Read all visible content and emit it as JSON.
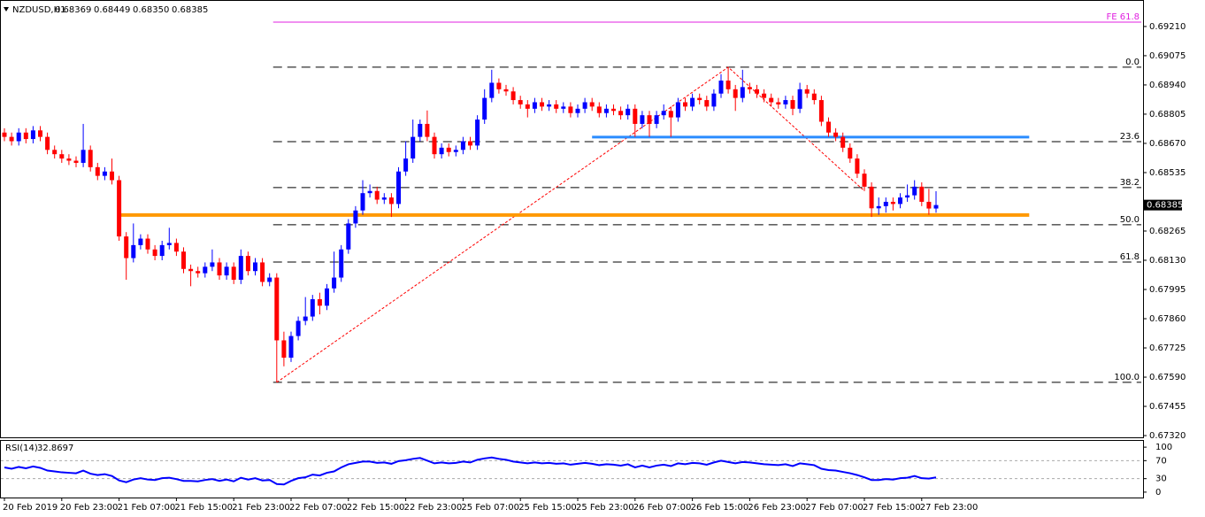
{
  "chart_data": {
    "type": "candlestick",
    "title": "NZDUSD,H1",
    "quote": {
      "open": "0.68369",
      "high": "0.68449",
      "low": "0.68350",
      "close": "0.68385"
    },
    "up_color": "#0000ff",
    "down_color": "#ff0000",
    "categories": [
      "20 Feb 2019",
      null,
      null,
      null,
      null,
      null,
      null,
      null,
      "20 Feb 23:00",
      null,
      null,
      null,
      null,
      null,
      null,
      null,
      "21 Feb 07:00",
      null,
      null,
      null,
      null,
      null,
      null,
      null,
      "21 Feb 15:00",
      null,
      null,
      null,
      null,
      null,
      null,
      null,
      "21 Feb 23:00",
      null,
      null,
      null,
      null,
      null,
      null,
      null,
      "22 Feb 07:00",
      null,
      null,
      null,
      null,
      null,
      null,
      null,
      "22 Feb 15:00",
      null,
      null,
      null,
      null,
      null,
      null,
      null,
      "22 Feb 23:00",
      null,
      null,
      null,
      null,
      null,
      null,
      null,
      "25 Feb 07:00",
      null,
      null,
      null,
      null,
      null,
      null,
      null,
      "25 Feb 15:00",
      null,
      null,
      null,
      null,
      null,
      null,
      null,
      "25 Feb 23:00",
      null,
      null,
      null,
      null,
      null,
      null,
      null,
      "26 Feb 07:00",
      null,
      null,
      null,
      null,
      null,
      null,
      null,
      "26 Feb 15:00",
      null,
      null,
      null,
      null,
      null,
      null,
      null,
      "26 Feb 23:00",
      null,
      null,
      null,
      null,
      null,
      null,
      null,
      "27 Feb 07:00",
      null,
      null,
      null,
      null,
      null,
      null,
      null,
      "27 Feb 15:00",
      null,
      null,
      null,
      null,
      null,
      null,
      null,
      "27 Feb 23:00",
      null,
      null
    ],
    "open": [
      0.6872,
      0.687,
      0.6868,
      0.6872,
      0.6869,
      0.6873,
      0.687,
      0.6864,
      0.6862,
      0.686,
      0.6859,
      0.6858,
      0.6864,
      0.6856,
      0.6852,
      0.6854,
      0.685,
      0.6824,
      0.6814,
      0.682,
      0.6823,
      0.6818,
      0.6815,
      0.682,
      0.6821,
      0.6817,
      0.6809,
      0.6808,
      0.6807,
      0.681,
      0.6812,
      0.6806,
      0.681,
      0.6804,
      0.6815,
      0.6808,
      0.6812,
      0.6803,
      0.6805,
      0.6776,
      0.6768,
      0.6778,
      0.6785,
      0.6787,
      0.6795,
      0.6792,
      0.68,
      0.6805,
      0.6818,
      0.683,
      0.6836,
      0.6844,
      0.6845,
      0.6841,
      0.6842,
      0.6839,
      0.6854,
      0.686,
      0.687,
      0.6876,
      0.687,
      0.6862,
      0.6865,
      0.6863,
      0.6864,
      0.6868,
      0.6866,
      0.6878,
      0.6888,
      0.6895,
      0.6892,
      0.6891,
      0.6887,
      0.6885,
      0.6883,
      0.6886,
      0.6884,
      0.6885,
      0.6883,
      0.6884,
      0.6881,
      0.6883,
      0.6886,
      0.6884,
      0.6881,
      0.6883,
      0.6882,
      0.688,
      0.6883,
      0.6876,
      0.688,
      0.6876,
      0.688,
      0.6882,
      0.6879,
      0.6886,
      0.6884,
      0.6888,
      0.6887,
      0.6884,
      0.689,
      0.6896,
      0.6892,
      0.6888,
      0.6893,
      0.6892,
      0.689,
      0.6888,
      0.6886,
      0.6885,
      0.6887,
      0.6883,
      0.6892,
      0.689,
      0.6887,
      0.6877,
      0.6872,
      0.687,
      0.6865,
      0.686,
      0.6853,
      0.6847,
      0.6837,
      0.6838,
      0.684,
      0.6839,
      0.6842,
      0.6843,
      0.6847,
      0.684,
      0.68369
    ],
    "high": [
      0.6874,
      0.6872,
      0.6874,
      0.6874,
      0.6875,
      0.6875,
      0.6872,
      0.6866,
      0.6864,
      0.6862,
      0.6861,
      0.6876,
      0.6866,
      0.6858,
      0.6856,
      0.686,
      0.6852,
      0.6826,
      0.683,
      0.6825,
      0.6825,
      0.682,
      0.6822,
      0.6828,
      0.6823,
      0.6819,
      0.6811,
      0.681,
      0.6812,
      0.6818,
      0.6814,
      0.6812,
      0.6812,
      0.6818,
      0.6817,
      0.6814,
      0.6814,
      0.6807,
      0.6807,
      0.678,
      0.678,
      0.6787,
      0.6796,
      0.6797,
      0.6798,
      0.6802,
      0.6817,
      0.682,
      0.6832,
      0.6838,
      0.685,
      0.6848,
      0.6847,
      0.6844,
      0.6844,
      0.6856,
      0.6868,
      0.6878,
      0.6878,
      0.68822,
      0.6872,
      0.6867,
      0.6867,
      0.6866,
      0.687,
      0.687,
      0.688,
      0.6892,
      0.6901,
      0.6897,
      0.6894,
      0.6893,
      0.6889,
      0.6887,
      0.6888,
      0.6888,
      0.6887,
      0.6887,
      0.6886,
      0.6886,
      0.6885,
      0.6888,
      0.6888,
      0.6886,
      0.6885,
      0.6885,
      0.6884,
      0.6885,
      0.6885,
      0.6882,
      0.6882,
      0.6882,
      0.6885,
      0.6884,
      0.6888,
      0.6888,
      0.689,
      0.689,
      0.6889,
      0.6892,
      0.6899,
      0.69022,
      0.6894,
      0.6901,
      0.6895,
      0.6894,
      0.6892,
      0.689,
      0.6888,
      0.6889,
      0.6889,
      0.6895,
      0.6894,
      0.6892,
      0.6889,
      0.6879,
      0.6874,
      0.6872,
      0.6867,
      0.6862,
      0.6855,
      0.6849,
      0.6842,
      0.6842,
      0.6842,
      0.6844,
      0.6848,
      0.685,
      0.6849,
      0.6846,
      0.68449
    ],
    "low": [
      0.6868,
      0.6866,
      0.6866,
      0.6867,
      0.6867,
      0.6868,
      0.6862,
      0.686,
      0.6858,
      0.6857,
      0.6856,
      0.6856,
      0.6854,
      0.685,
      0.685,
      0.6848,
      0.6822,
      0.6804,
      0.6812,
      0.6818,
      0.6816,
      0.6813,
      0.6813,
      0.6818,
      0.6815,
      0.6807,
      0.6801,
      0.6805,
      0.6805,
      0.6808,
      0.6804,
      0.6804,
      0.6802,
      0.6802,
      0.6806,
      0.6806,
      0.6801,
      0.6801,
      0.67566,
      0.6764,
      0.6766,
      0.6776,
      0.6783,
      0.6785,
      0.6788,
      0.679,
      0.6798,
      0.6803,
      0.6816,
      0.6828,
      0.6834,
      0.6842,
      0.6839,
      0.6839,
      0.6833,
      0.6837,
      0.6852,
      0.6858,
      0.6868,
      0.6868,
      0.686,
      0.686,
      0.6861,
      0.6861,
      0.6862,
      0.6864,
      0.6864,
      0.6876,
      0.6886,
      0.689,
      0.6889,
      0.6885,
      0.6883,
      0.6879,
      0.6881,
      0.6882,
      0.6882,
      0.6881,
      0.6881,
      0.6879,
      0.6879,
      0.6881,
      0.6882,
      0.6879,
      0.6879,
      0.688,
      0.6878,
      0.6878,
      0.687,
      0.6874,
      0.687,
      0.6874,
      0.6878,
      0.687,
      0.6877,
      0.6882,
      0.6882,
      0.6885,
      0.6882,
      0.6882,
      0.6888,
      0.689,
      0.6882,
      0.6886,
      0.689,
      0.6888,
      0.6886,
      0.6884,
      0.6883,
      0.6883,
      0.688,
      0.6881,
      0.6888,
      0.6885,
      0.6875,
      0.687,
      0.6868,
      0.6863,
      0.6858,
      0.6851,
      0.6845,
      0.6833,
      0.6834,
      0.6835,
      0.6836,
      0.6837,
      0.684,
      0.6841,
      0.6838,
      0.6834,
      0.6835
    ],
    "close": [
      0.687,
      0.6868,
      0.6872,
      0.6869,
      0.6873,
      0.687,
      0.6864,
      0.6862,
      0.686,
      0.6859,
      0.6858,
      0.6864,
      0.6856,
      0.6852,
      0.6854,
      0.685,
      0.6824,
      0.6814,
      0.682,
      0.6823,
      0.6818,
      0.6815,
      0.682,
      0.6821,
      0.6817,
      0.6809,
      0.6808,
      0.6807,
      0.681,
      0.6812,
      0.6806,
      0.681,
      0.6804,
      0.6815,
      0.6808,
      0.6812,
      0.6803,
      0.6805,
      0.6776,
      0.6768,
      0.6778,
      0.6785,
      0.6787,
      0.6795,
      0.6792,
      0.68,
      0.6805,
      0.6818,
      0.683,
      0.6836,
      0.6844,
      0.6845,
      0.6841,
      0.6842,
      0.6839,
      0.6854,
      0.686,
      0.687,
      0.6876,
      0.687,
      0.6862,
      0.6865,
      0.6863,
      0.6864,
      0.6868,
      0.6866,
      0.6878,
      0.6888,
      0.6895,
      0.6892,
      0.6891,
      0.6887,
      0.6885,
      0.6883,
      0.6886,
      0.6884,
      0.6885,
      0.6883,
      0.6884,
      0.6881,
      0.6883,
      0.6886,
      0.6884,
      0.6881,
      0.6883,
      0.6882,
      0.688,
      0.6883,
      0.6876,
      0.688,
      0.6876,
      0.688,
      0.6882,
      0.6879,
      0.6886,
      0.6884,
      0.6888,
      0.6887,
      0.6884,
      0.689,
      0.6896,
      0.6892,
      0.6888,
      0.6893,
      0.6892,
      0.689,
      0.6888,
      0.6886,
      0.6885,
      0.6887,
      0.6883,
      0.6892,
      0.689,
      0.6887,
      0.6877,
      0.6872,
      0.687,
      0.6865,
      0.686,
      0.6853,
      0.6847,
      0.6837,
      0.6838,
      0.684,
      0.6839,
      0.6842,
      0.6843,
      0.6847,
      0.684,
      0.68369,
      0.68385
    ],
    "ylim": [
      0.67312,
      0.69316
    ],
    "yticks": [
      {
        "value": 0.6921,
        "label": "0.69210"
      },
      {
        "value": 0.69075,
        "label": "0.69075"
      },
      {
        "value": 0.6894,
        "label": "0.68940"
      },
      {
        "value": 0.68805,
        "label": "0.68805"
      },
      {
        "value": 0.6867,
        "label": "0.68670"
      },
      {
        "value": 0.68535,
        "label": "0.68535"
      },
      {
        "value": 0.68265,
        "label": "0.68265"
      },
      {
        "value": 0.6813,
        "label": "0.68130"
      },
      {
        "value": 0.67995,
        "label": "0.67995"
      },
      {
        "value": 0.6786,
        "label": "0.67860"
      },
      {
        "value": 0.67725,
        "label": "0.67725"
      },
      {
        "value": 0.6759,
        "label": "0.67590"
      },
      {
        "value": 0.67455,
        "label": "0.67455"
      },
      {
        "value": 0.6732,
        "label": "0.67320"
      }
    ],
    "fib_levels": [
      {
        "label": "0.0",
        "value": 0.69022
      },
      {
        "label": "23.6",
        "value": 0.68678
      },
      {
        "label": "38.2",
        "value": 0.68466
      },
      {
        "label": "50.0",
        "value": 0.68294
      },
      {
        "label": "61.8",
        "value": 0.68122
      },
      {
        "label": "100.0",
        "value": 0.67566
      }
    ],
    "fib_extension": {
      "label": "FE 61.8",
      "value": 0.6923,
      "color": "#e020e0"
    },
    "fib_color": "#000000",
    "horizontal_lines": [
      {
        "value": 0.68339,
        "from": 16,
        "to": 143,
        "color": "#ff9900"
      },
      {
        "value": 0.68699,
        "from": 82,
        "to": 143,
        "color": "#2a8cff"
      }
    ],
    "zigzag": {
      "x": [
        38,
        101,
        120
      ],
      "y": [
        0.67566,
        0.69022,
        0.6845
      ],
      "color": "#ff0000"
    },
    "rsi": {
      "name": "RSI(14)",
      "color": "#0000ff",
      "values": [
        55,
        52,
        56,
        53,
        57,
        54,
        48,
        46,
        44,
        43,
        42,
        48,
        41,
        38,
        40,
        36,
        26,
        22,
        28,
        31,
        28,
        27,
        31,
        32,
        29,
        25,
        25,
        24,
        27,
        29,
        25,
        28,
        24,
        32,
        28,
        31,
        26,
        27,
        18,
        17,
        25,
        31,
        33,
        39,
        37,
        43,
        46,
        55,
        62,
        65,
        68,
        68,
        65,
        66,
        63,
        69,
        71,
        74,
        76,
        70,
        64,
        66,
        64,
        65,
        68,
        66,
        72,
        75,
        77,
        74,
        72,
        68,
        66,
        64,
        66,
        64,
        65,
        63,
        64,
        61,
        63,
        65,
        63,
        60,
        62,
        61,
        59,
        62,
        55,
        59,
        55,
        59,
        61,
        58,
        64,
        62,
        65,
        64,
        61,
        66,
        70,
        67,
        64,
        67,
        66,
        64,
        62,
        61,
        60,
        62,
        58,
        64,
        62,
        60,
        52,
        49,
        48,
        45,
        42,
        38,
        33,
        27,
        27,
        29,
        28,
        31,
        32,
        36,
        31,
        30,
        32.8697
      ],
      "ylim": [
        -12,
        114
      ],
      "yticks": [
        100,
        70,
        30,
        0
      ],
      "levels": [
        70,
        30
      ]
    }
  }
}
